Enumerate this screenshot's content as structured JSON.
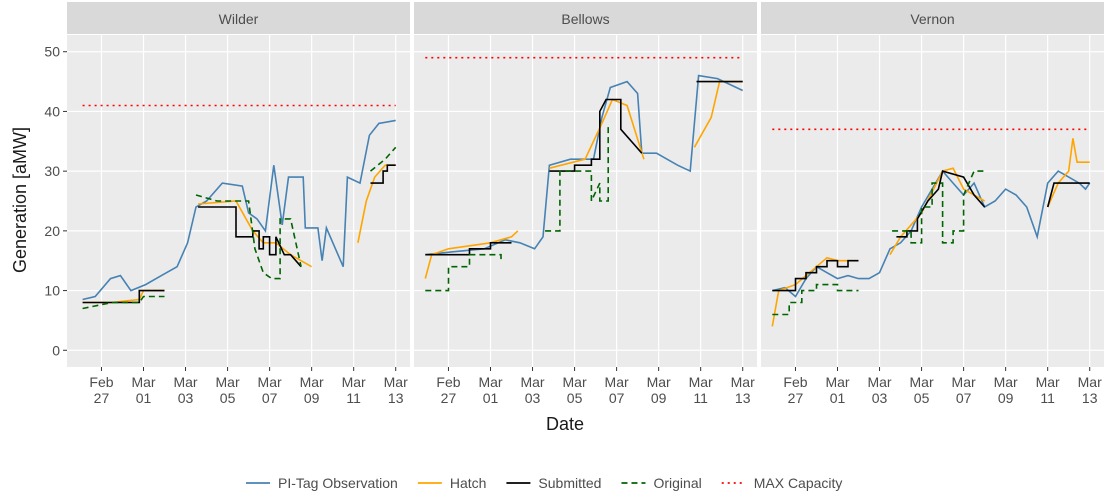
{
  "chart_data": {
    "type": "line",
    "ylabel": "Generation [aMW]",
    "xlabel": "Date",
    "ylim": [
      -2.8,
      52.8
    ],
    "yticks": [
      0,
      10,
      20,
      30,
      40,
      50
    ],
    "xlim": [
      -1.64,
      14.68
    ],
    "xticks": [
      {
        "value": 0,
        "label": "Feb 27"
      },
      {
        "value": 2,
        "label": "Mar 01"
      },
      {
        "value": 4,
        "label": "Mar 03"
      },
      {
        "value": 6,
        "label": "Mar 05"
      },
      {
        "value": 8,
        "label": "Mar 07"
      },
      {
        "value": 10,
        "label": "Mar 09"
      },
      {
        "value": 12,
        "label": "Mar 11"
      },
      {
        "value": 14,
        "label": "Mar 13"
      }
    ],
    "grid": true,
    "panels": [
      {
        "title": "Wilder",
        "series": [
          {
            "name": "PI-Tag Observation",
            "color": "#4682b4",
            "dash": "solid",
            "x": [
              -0.9,
              -0.3,
              0.43,
              0.9,
              1.4,
              2.1,
              2.85,
              3.6,
              4.1,
              4.5,
              5.0,
              5.75,
              6.7,
              7.0,
              7.4,
              7.8,
              8.2,
              8.6,
              8.9,
              9.6,
              9.7,
              10.3,
              10.5,
              10.7,
              11.5,
              11.7,
              12.3,
              12.75,
              13.2,
              14.0
            ],
            "values": [
              8.5,
              9,
              12,
              12.5,
              10,
              11,
              12.5,
              14,
              18,
              24,
              25,
              28,
              27.5,
              23,
              22,
              20,
              31,
              21,
              29,
              29,
              20.5,
              20.5,
              15,
              20.5,
              14,
              29,
              28,
              36,
              38,
              38.5
            ]
          },
          {
            "name": "Hatch",
            "color": "#ffa500",
            "dash": "solid",
            "x": [
              -0.9,
              0.5,
              1.8,
              2.0,
              3.0,
              null,
              4.6,
              6.4,
              7.2,
              7.7,
              8.3,
              9.0,
              10.0,
              null,
              12.2,
              12.6,
              13.0,
              13.5,
              14.0
            ],
            "values": [
              8,
              8,
              8.5,
              10,
              10,
              null,
              24.5,
              25,
              20,
              18,
              18,
              16,
              14,
              null,
              18,
              25,
              29,
              31,
              31
            ]
          },
          {
            "name": "Submitted",
            "color": "#000000",
            "dash": "solid",
            "x": [
              -0.9,
              1.8,
              1.8,
              3.0,
              null,
              4.6,
              6.4,
              6.4,
              7.2,
              7.2,
              7.5,
              7.5,
              7.7,
              7.7,
              8.0,
              8.0,
              8.3,
              8.3,
              8.7,
              9.0,
              9.5,
              null,
              12.8,
              13.4,
              13.4,
              13.6,
              13.6,
              14.0
            ],
            "values": [
              8,
              8,
              10,
              10,
              null,
              24,
              24,
              19,
              19,
              20,
              20,
              17,
              17,
              19,
              19,
              16,
              16,
              19,
              16,
              16,
              14,
              null,
              28,
              28,
              30,
              30,
              31,
              31
            ]
          },
          {
            "name": "Original",
            "color": "#006400",
            "dash": "dashed",
            "x": [
              -0.9,
              0.5,
              1.8,
              2.0,
              3.0,
              null,
              4.5,
              5.5,
              7.0,
              7.3,
              7.7,
              8.1,
              8.5,
              8.5,
              9.0,
              9.5,
              null,
              12.8,
              13.5,
              14.0
            ],
            "values": [
              7,
              8,
              8,
              9,
              9,
              null,
              26,
              25,
              25,
              17,
              13,
              12,
              12,
              22,
              22,
              14,
              null,
              30,
              32,
              34
            ]
          },
          {
            "name": "MAX Capacity",
            "color": "#ff0000",
            "dash": "dotted",
            "x": [
              -0.9,
              14.0
            ],
            "values": [
              41,
              41
            ]
          }
        ]
      },
      {
        "title": "Bellows",
        "series": [
          {
            "name": "PI-Tag Observation",
            "color": "#4682b4",
            "dash": "solid",
            "x": [
              -1.1,
              0.2,
              1.7,
              2.7,
              3.4,
              4.1,
              4.5,
              4.8,
              5.8,
              6.9,
              7.3,
              7.7,
              8.5,
              9.0,
              9.2,
              9.9,
              10.9,
              11.5,
              11.9,
              12.8,
              14.0
            ],
            "values": [
              16,
              16.5,
              17,
              18.5,
              18,
              17,
              19,
              31,
              32,
              32,
              39,
              44,
              45,
              43,
              33,
              33,
              31,
              30,
              46,
              45.5,
              43.5
            ]
          },
          {
            "name": "Hatch",
            "color": "#ffa500",
            "dash": "solid",
            "x": [
              -1.1,
              -0.8,
              0,
              1,
              2,
              3,
              3.3,
              null,
              4.8,
              6.5,
              7.3,
              7.8,
              8.5,
              9.3,
              null,
              11.7,
              12.5,
              12.9,
              13.5,
              14.0
            ],
            "values": [
              12,
              16,
              17,
              17.5,
              18,
              19,
              20,
              null,
              30.5,
              32,
              38,
              42,
              41,
              32,
              null,
              34,
              39,
              45,
              45,
              45
            ]
          },
          {
            "name": "Submitted",
            "color": "#000000",
            "dash": "solid",
            "x": [
              -1.1,
              1,
              1,
              2,
              2,
              3,
              null,
              4.8,
              6,
              6,
              6.8,
              6.8,
              7.2,
              7.2,
              7.5,
              8.2,
              8.2,
              9.2,
              null,
              11.8,
              14.0
            ],
            "values": [
              16,
              16,
              17,
              17,
              18,
              18,
              null,
              30,
              30,
              31,
              31,
              32,
              32,
              40,
              42,
              42,
              37,
              33,
              null,
              45,
              45
            ]
          },
          {
            "name": "Original",
            "color": "#006400",
            "dash": "dashed",
            "x": [
              -1.1,
              0,
              0,
              1,
              1,
              2.5,
              2.5,
              null,
              4.6,
              5.3,
              5.3,
              6.8,
              6.8,
              7.2,
              7.2,
              7.6,
              7.6
            ],
            "values": [
              10,
              10,
              14,
              14,
              16,
              16,
              15,
              null,
              20,
              20,
              30,
              30,
              25,
              28,
              25,
              25,
              38
            ]
          },
          {
            "name": "MAX Capacity",
            "color": "#ff0000",
            "dash": "dotted",
            "x": [
              -1.1,
              14.0
            ],
            "values": [
              49,
              49
            ]
          }
        ]
      },
      {
        "title": "Vernon",
        "series": [
          {
            "name": "PI-Tag Observation",
            "color": "#4682b4",
            "dash": "solid",
            "x": [
              -1.1,
              -0.5,
              0,
              0.5,
              1,
              1.5,
              2,
              2.5,
              3,
              3.5,
              4,
              4.5,
              5,
              5.5,
              6,
              6.5,
              7,
              7.5,
              8,
              8.5,
              9,
              9.5,
              10,
              10.5,
              11,
              11.5,
              12,
              12.5,
              13,
              13.5,
              13.8,
              14.0
            ],
            "values": [
              10,
              10.5,
              9,
              12,
              14,
              13,
              12,
              12.5,
              12,
              12,
              13,
              17,
              18,
              20,
              24,
              27,
              30,
              28,
              26,
              28,
              24,
              25,
              27,
              26,
              24,
              19,
              28,
              30,
              29,
              28,
              27,
              28
            ]
          },
          {
            "name": "Hatch",
            "color": "#ffa500",
            "dash": "solid",
            "x": [
              -1.1,
              -0.8,
              0,
              1,
              1.5,
              2,
              3,
              null,
              4.5,
              5,
              6,
              7,
              7.5,
              8,
              9,
              null,
              12,
              12.5,
              13,
              13.2,
              13.4,
              14.0
            ],
            "values": [
              4,
              10,
              11,
              14,
              15.5,
              15,
              15,
              null,
              16,
              19,
              23,
              30,
              30.5,
              27,
              25,
              null,
              24,
              28,
              30,
              35.5,
              31.5,
              31.5
            ]
          },
          {
            "name": "Submitted",
            "color": "#000000",
            "dash": "solid",
            "x": [
              -1.1,
              0,
              0,
              0.5,
              0.5,
              1,
              1,
              1.5,
              1.5,
              2,
              2,
              2.5,
              2.5,
              3,
              null,
              4.8,
              5.3,
              5.3,
              5.8,
              5.8,
              6.3,
              6.8,
              7,
              8,
              8.5,
              9,
              null,
              12,
              12.3,
              14.0
            ],
            "values": [
              10,
              10,
              12,
              12,
              13,
              13,
              14,
              14,
              15,
              15,
              14,
              14,
              15,
              15,
              null,
              19,
              19,
              20,
              20,
              22,
              25,
              27,
              30,
              29,
              26,
              24,
              null,
              24,
              28,
              28
            ]
          },
          {
            "name": "Original",
            "color": "#006400",
            "dash": "dashed",
            "x": [
              -1.1,
              -0.3,
              -0.3,
              0.3,
              0.3,
              1,
              1,
              2,
              2,
              3,
              null,
              4.6,
              5.5,
              5.5,
              6,
              6,
              6.5,
              6.5,
              7,
              7,
              7.5,
              7.5,
              8,
              8,
              8.5,
              9
            ],
            "values": [
              6,
              6,
              8,
              8,
              10,
              10,
              11,
              11,
              10,
              10,
              null,
              20,
              20,
              18,
              18,
              24,
              24,
              28,
              28,
              18,
              18,
              20,
              20,
              26,
              30,
              30
            ]
          },
          {
            "name": "MAX Capacity",
            "color": "#ff0000",
            "dash": "dotted",
            "x": [
              -1.1,
              14.0
            ],
            "values": [
              37,
              37
            ]
          }
        ]
      }
    ]
  }
}
